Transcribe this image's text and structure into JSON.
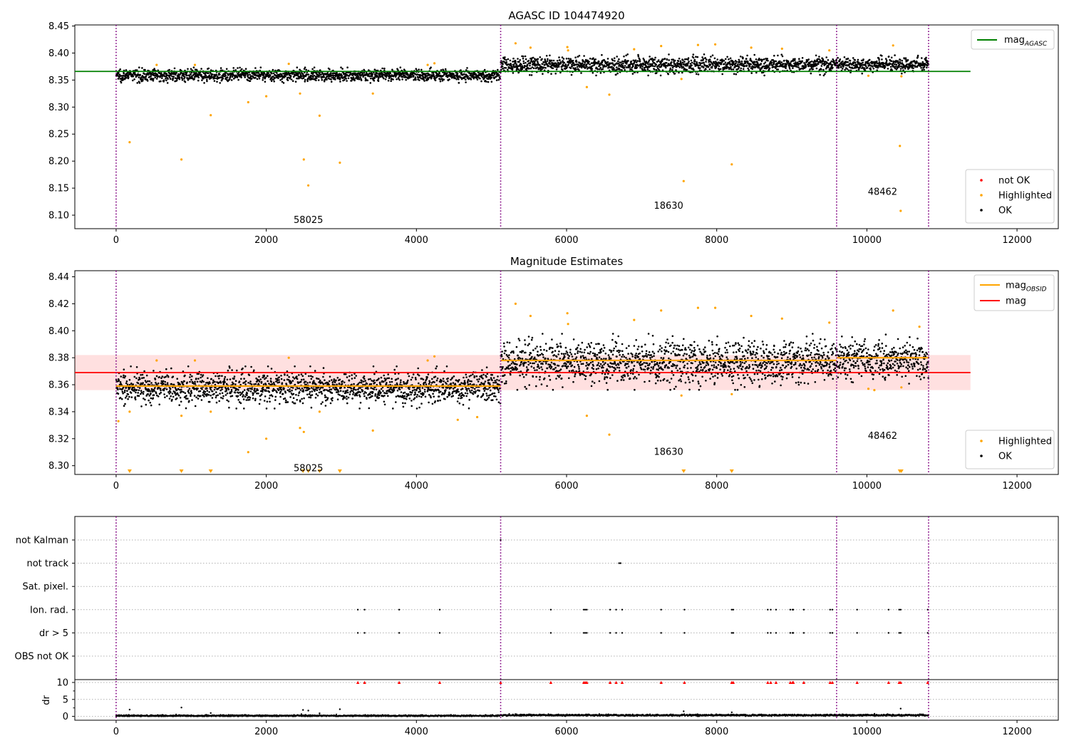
{
  "chart_data": [
    {
      "type": "scatter",
      "title": "AGASC ID 104474920",
      "xlim": [
        -550,
        12550
      ],
      "ylim": [
        8.075,
        8.452
      ],
      "xticks": [
        0,
        2000,
        4000,
        6000,
        8000,
        10000,
        12000
      ],
      "xtick_labels": [
        "0",
        "2000",
        "4000",
        "6000",
        "8000",
        "10000",
        "12000"
      ],
      "yticks": [
        8.1,
        8.15,
        8.2,
        8.25,
        8.3,
        8.35,
        8.4,
        8.45
      ],
      "ytick_labels": [
        "8.10",
        "8.15",
        "8.20",
        "8.25",
        "8.30",
        "8.35",
        "8.40",
        "8.45"
      ],
      "obsid_boundaries": [
        0,
        5122,
        9597,
        10822
      ],
      "obsid_labels": [
        {
          "text": "58025",
          "x": 2561,
          "y": 8.091
        },
        {
          "text": "18630",
          "x": 7359,
          "y": 8.117
        },
        {
          "text": "48462",
          "x": 10209,
          "y": 8.143
        }
      ],
      "reference_lines": [
        {
          "name": "mag_AGASC",
          "y": 8.366,
          "x": [
            -550,
            11380
          ],
          "color": "#008000"
        }
      ],
      "segments": [
        {
          "x_start": 0,
          "x_end": 5122,
          "center": 8.359,
          "spread": 0.0055
        },
        {
          "x_start": 5122,
          "x_end": 9597,
          "center": 8.378,
          "spread": 0.0075
        },
        {
          "x_start": 9597,
          "x_end": 10822,
          "center": 8.379,
          "spread": 0.0065
        }
      ],
      "series": [
        {
          "name": "not OK",
          "color": "#ff0000",
          "points": []
        },
        {
          "name": "Highlighted",
          "color": "#ffa500",
          "points": [
            [
              180,
              8.235
            ],
            [
              870,
              8.203
            ],
            [
              1260,
              8.285
            ],
            [
              1760,
              8.309
            ],
            [
              2000,
              8.32
            ],
            [
              2450,
              8.325
            ],
            [
              2500,
              8.203
            ],
            [
              2560,
              8.155
            ],
            [
              2710,
              8.284
            ],
            [
              2980,
              8.197
            ],
            [
              3420,
              8.325
            ],
            [
              540,
              8.378
            ],
            [
              1050,
              8.378
            ],
            [
              2300,
              8.38
            ],
            [
              4150,
              8.378
            ],
            [
              4240,
              8.381
            ],
            [
              5320,
              8.418
            ],
            [
              5520,
              8.41
            ],
            [
              6010,
              8.411
            ],
            [
              6020,
              8.405
            ],
            [
              6270,
              8.337
            ],
            [
              6570,
              8.323
            ],
            [
              6900,
              8.407
            ],
            [
              7260,
              8.413
            ],
            [
              7530,
              8.352
            ],
            [
              7560,
              8.163
            ],
            [
              7750,
              8.415
            ],
            [
              7980,
              8.416
            ],
            [
              8200,
              8.194
            ],
            [
              8460,
              8.41
            ],
            [
              8870,
              8.408
            ],
            [
              9500,
              8.405
            ],
            [
              10020,
              8.358
            ],
            [
              10350,
              8.414
            ],
            [
              10440,
              8.228
            ],
            [
              10450,
              8.108
            ],
            [
              10460,
              8.357
            ]
          ]
        },
        {
          "name": "OK",
          "color": "#000000",
          "points": []
        }
      ],
      "legend": {
        "placement": "top-right",
        "entries": [
          {
            "label": "mag",
            "sub": "AGASC"
          }
        ]
      },
      "legend2": {
        "placement": "bottom-right",
        "entries": [
          "not OK",
          "Highlighted",
          "OK"
        ]
      }
    },
    {
      "type": "scatter",
      "title": "Magnitude Estimates",
      "xlim": [
        -550,
        12550
      ],
      "ylim": [
        8.2935,
        8.4445
      ],
      "xticks": [
        0,
        2000,
        4000,
        6000,
        8000,
        10000,
        12000
      ],
      "xtick_labels": [
        "0",
        "2000",
        "4000",
        "6000",
        "8000",
        "10000",
        "12000"
      ],
      "yticks": [
        8.3,
        8.32,
        8.34,
        8.36,
        8.38,
        8.4,
        8.42,
        8.44
      ],
      "ytick_labels": [
        "8.30",
        "8.32",
        "8.34",
        "8.36",
        "8.38",
        "8.40",
        "8.42",
        "8.44"
      ],
      "obsid_boundaries": [
        0,
        5122,
        9597,
        10822
      ],
      "obsid_labels": [
        {
          "text": "58025",
          "x": 2561,
          "y": 8.298
        },
        {
          "text": "18630",
          "x": 7359,
          "y": 8.31
        },
        {
          "text": "48462",
          "x": 10209,
          "y": 8.322
        }
      ],
      "band": {
        "y_low": 8.356,
        "y_high": 8.382,
        "x": [
          -550,
          11380
        ],
        "color": "#ff0000",
        "opacity": 0.12
      },
      "reference_lines": [
        {
          "name": "mag",
          "y": 8.369,
          "x": [
            -550,
            11380
          ],
          "color": "#ff0000"
        }
      ],
      "obsid_mag": [
        {
          "x": [
            0,
            5122
          ],
          "y": 8.359
        },
        {
          "x": [
            5122,
            9597
          ],
          "y": 8.378
        },
        {
          "x": [
            9597,
            10822
          ],
          "y": 8.38
        }
      ],
      "segments": [
        {
          "x_start": 0,
          "x_end": 5122,
          "center": 8.358,
          "spread": 0.006
        },
        {
          "x_start": 5122,
          "x_end": 9597,
          "center": 8.377,
          "spread": 0.008
        },
        {
          "x_start": 9597,
          "x_end": 10822,
          "center": 8.379,
          "spread": 0.007
        }
      ],
      "series": [
        {
          "name": "Highlighted",
          "color": "#ffa500",
          "points": [
            [
              30,
              8.333
            ],
            [
              180,
              8.34
            ],
            [
              540,
              8.378
            ],
            [
              870,
              8.337
            ],
            [
              1050,
              8.378
            ],
            [
              1260,
              8.34
            ],
            [
              1760,
              8.31
            ],
            [
              2000,
              8.32
            ],
            [
              2300,
              8.38
            ],
            [
              2450,
              8.328
            ],
            [
              2500,
              8.325
            ],
            [
              2710,
              8.34
            ],
            [
              3420,
              8.326
            ],
            [
              4150,
              8.378
            ],
            [
              4240,
              8.381
            ],
            [
              4550,
              8.334
            ],
            [
              4810,
              8.336
            ],
            [
              5320,
              8.42
            ],
            [
              5520,
              8.411
            ],
            [
              6010,
              8.413
            ],
            [
              6020,
              8.405
            ],
            [
              6270,
              8.337
            ],
            [
              6570,
              8.323
            ],
            [
              6900,
              8.408
            ],
            [
              7260,
              8.415
            ],
            [
              7530,
              8.352
            ],
            [
              7750,
              8.417
            ],
            [
              7980,
              8.417
            ],
            [
              8200,
              8.353
            ],
            [
              8460,
              8.411
            ],
            [
              8870,
              8.409
            ],
            [
              9500,
              8.406
            ],
            [
              10020,
              8.357
            ],
            [
              10100,
              8.356
            ],
            [
              10350,
              8.415
            ],
            [
              10460,
              8.358
            ],
            [
              10700,
              8.403
            ]
          ]
        },
        {
          "name": "OK",
          "color": "#000000",
          "points": []
        }
      ],
      "out_of_range_markers": [
        180,
        870,
        1260,
        2490,
        2560,
        2710,
        2980,
        7560,
        8200,
        10440,
        10460
      ],
      "legend": {
        "placement": "top-right",
        "entries": [
          {
            "label": "mag",
            "sub": "OBSID"
          },
          {
            "label": "mag",
            "sub": ""
          }
        ]
      },
      "legend2": {
        "placement": "bottom-right",
        "entries": [
          "Highlighted",
          "OK"
        ]
      }
    },
    {
      "type": "scatter",
      "title": "",
      "xlim": [
        -550,
        12550
      ],
      "xticks": [
        0,
        2000,
        4000,
        6000,
        8000,
        10000,
        12000
      ],
      "xtick_labels": [
        "0",
        "2000",
        "4000",
        "6000",
        "8000",
        "10000",
        "12000"
      ],
      "obsid_boundaries": [
        0,
        5122,
        9597,
        10822
      ],
      "flag_rows": [
        "not Kalman",
        "not track",
        "Sat. pixel.",
        "Ion. rad.",
        "dr > 5",
        "OBS not OK"
      ],
      "flag_points": {
        "not Kalman": [
          5122
        ],
        "not track": [
          6700,
          6720
        ],
        "Sat. pixel.": [],
        "Ion. rad.": [
          3220,
          3310,
          3770,
          4310,
          5790,
          6230,
          6250,
          6270,
          6580,
          6660,
          6740,
          7260,
          7570,
          8200,
          8220,
          8680,
          8720,
          8790,
          8980,
          9010,
          9020,
          9160,
          9510,
          9540,
          9870,
          10290,
          10430,
          10450,
          10810
        ],
        "dr > 5": [
          3220,
          3310,
          3770,
          4310,
          5790,
          6230,
          6250,
          6270,
          6580,
          6660,
          6740,
          7260,
          7570,
          8200,
          8220,
          8680,
          8720,
          8790,
          8980,
          9010,
          9020,
          9160,
          9510,
          9540,
          9870,
          10290,
          10430,
          10450,
          10810
        ],
        "OBS not OK": []
      },
      "dr": {
        "ylabel": "dr",
        "ylim": [
          -0.5,
          10
        ],
        "yticks": [
          0,
          5,
          10
        ],
        "ytick_labels": [
          "0",
          "5",
          "10"
        ],
        "clip_markers": [
          3220,
          3310,
          3770,
          4310,
          5122,
          5790,
          6230,
          6250,
          6270,
          6580,
          6660,
          6740,
          7260,
          7570,
          8200,
          8220,
          8680,
          8720,
          8790,
          8980,
          9010,
          9020,
          9160,
          9510,
          9540,
          9870,
          10290,
          10430,
          10450,
          10810
        ],
        "outliers": [
          [
            180,
            2.0
          ],
          [
            870,
            2.6
          ],
          [
            1260,
            1.0
          ],
          [
            2490,
            1.9
          ],
          [
            2560,
            1.7
          ],
          [
            2710,
            0.9
          ],
          [
            2980,
            2.1
          ],
          [
            7560,
            1.5
          ],
          [
            8200,
            1.2
          ],
          [
            10450,
            2.3
          ]
        ]
      }
    }
  ]
}
